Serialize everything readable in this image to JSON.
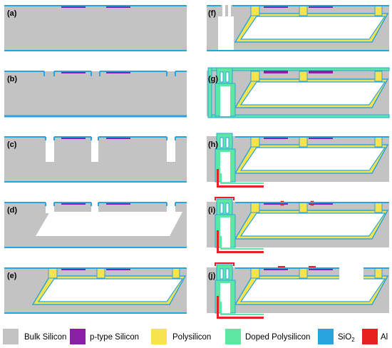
{
  "colors": {
    "bulk_silicon": "#c3c3c3",
    "p_type_silicon": "#8b1fa8",
    "polysilicon": "#f7e34b",
    "doped_polysilicon": "#5ee6a3",
    "sio2": "#2aa4df",
    "al": "#e8201f",
    "white": "#ffffff"
  },
  "panels": {
    "a": "(a)",
    "b": "(b)",
    "c": "(c)",
    "d": "(d)",
    "e": "(e)",
    "f": "(f)",
    "g": "(g)",
    "h": "(h)",
    "i": "(i)",
    "j": "(j)"
  },
  "legend": [
    {
      "key": "bulk_silicon",
      "label": "Bulk Silicon"
    },
    {
      "key": "p_type_silicon",
      "label": "p-type Silicon"
    },
    {
      "key": "polysilicon",
      "label": "Polysilicon"
    },
    {
      "key": "doped_polysilicon",
      "label": "Doped Polysilicon"
    },
    {
      "key": "sio2",
      "label": "SiO",
      "sub": "2"
    },
    {
      "key": "al",
      "label": "Al"
    }
  ]
}
